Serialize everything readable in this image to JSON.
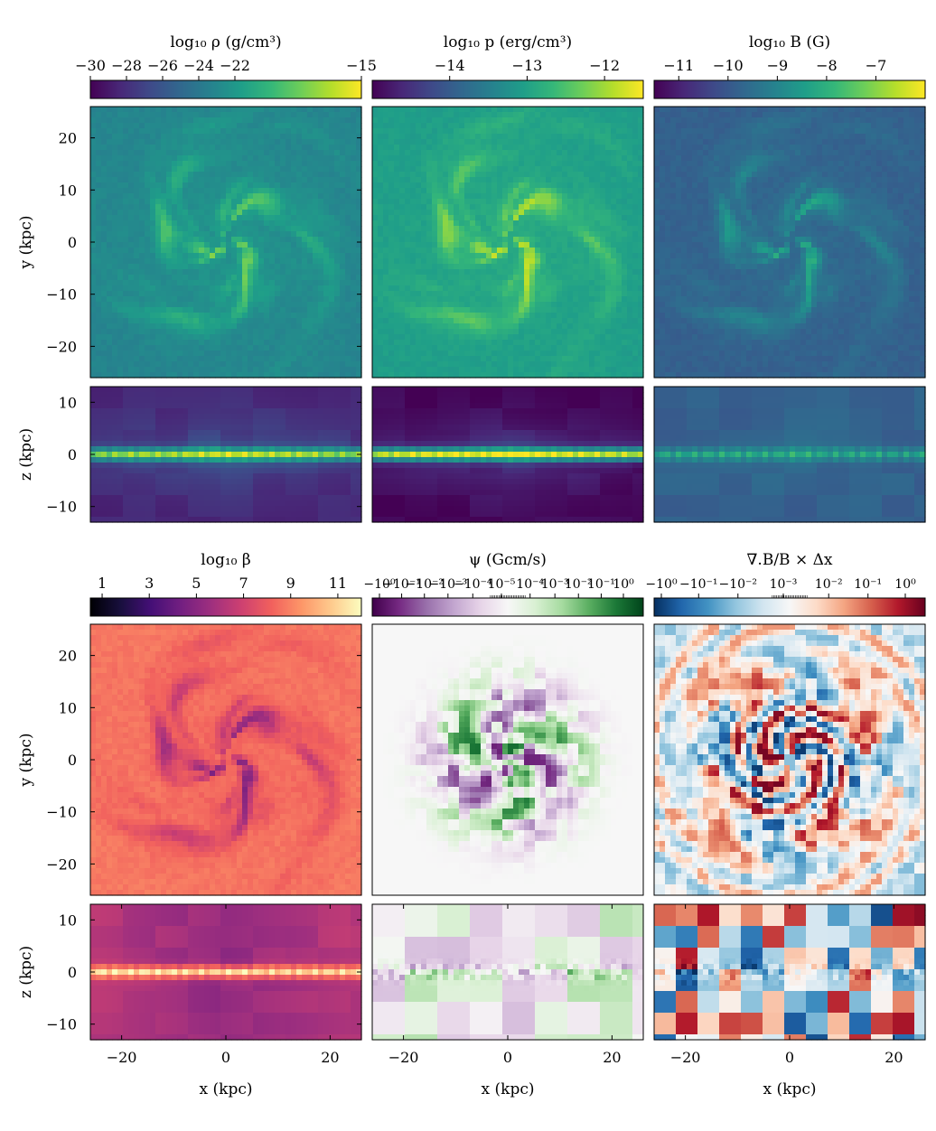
{
  "chart_data": [
    {
      "type": "heatmap",
      "name": "density-face-on",
      "colorbar_label": "log₁₀ ρ (g/cm³)",
      "colormap": "viridis",
      "clim": [
        -30,
        -15
      ],
      "colorbar_ticks": [
        "−30",
        "−28",
        "−26",
        "−24",
        "−22",
        "−15"
      ],
      "colorbar_tick_values": [
        -30,
        -28,
        -26,
        -24,
        -22,
        -15
      ],
      "xlim": [
        -26,
        26
      ],
      "ylim": [
        -26,
        26
      ],
      "ylabel": "y (kpc)",
      "yticks": [
        "20",
        "10",
        "0",
        "−10",
        "−20"
      ],
      "ytick_values": [
        20,
        10,
        0,
        -10,
        -20
      ],
      "pattern": "spiral",
      "level": [
        0.45,
        0.78,
        0.72
      ]
    },
    {
      "type": "heatmap",
      "name": "pressure-face-on",
      "colorbar_label": "log₁₀ p (erg/cm³)",
      "colormap": "viridis",
      "clim": [
        -15,
        -11.5
      ],
      "colorbar_ticks": [
        "−14",
        "−13",
        "−12"
      ],
      "colorbar_tick_values": [
        -14,
        -13,
        -12
      ],
      "xlim": [
        -26,
        26
      ],
      "ylim": [
        -26,
        26
      ],
      "pattern": "spiral",
      "level": [
        0.55,
        0.92,
        0.6
      ]
    },
    {
      "type": "heatmap",
      "name": "magnetic-field-face-on",
      "colorbar_label": "log₁₀ B (G)",
      "colormap": "viridis",
      "clim": [
        -11.5,
        -6
      ],
      "colorbar_ticks": [
        "−11",
        "−10",
        "−9",
        "−8",
        "−7"
      ],
      "colorbar_tick_values": [
        -11,
        -10,
        -9,
        -8,
        -7
      ],
      "xlim": [
        -26,
        26
      ],
      "ylim": [
        -26,
        26
      ],
      "pattern": "spiral",
      "level": [
        0.3,
        0.62,
        0.5
      ]
    },
    {
      "type": "heatmap",
      "name": "density-edge-on",
      "colormap": "viridis",
      "xlim": [
        -26,
        26
      ],
      "ylim": [
        -13,
        13
      ],
      "ylabel": "z (kpc)",
      "yticks": [
        "10",
        "0",
        "−10"
      ],
      "ytick_values": [
        10,
        0,
        -10
      ],
      "pattern": "disk",
      "level": [
        0.1,
        0.7,
        0.8
      ]
    },
    {
      "type": "heatmap",
      "name": "pressure-edge-on",
      "colormap": "viridis",
      "xlim": [
        -26,
        26
      ],
      "ylim": [
        -13,
        13
      ],
      "pattern": "disk",
      "level": [
        0.0,
        0.78,
        0.9
      ]
    },
    {
      "type": "heatmap",
      "name": "magnetic-field-edge-on",
      "colormap": "viridis",
      "xlim": [
        -26,
        26
      ],
      "ylim": [
        -13,
        13
      ],
      "pattern": "disk",
      "level": [
        0.3,
        0.55,
        0.2
      ]
    },
    {
      "type": "heatmap",
      "name": "plasma-beta-face-on",
      "colorbar_label": "log₁₀ β",
      "colormap": "magma",
      "clim": [
        0.5,
        12
      ],
      "colorbar_ticks": [
        "1",
        "3",
        "5",
        "7",
        "9",
        "11"
      ],
      "colorbar_tick_values": [
        1,
        3,
        5,
        7,
        9,
        11
      ],
      "xlim": [
        -26,
        26
      ],
      "ylim": [
        -26,
        26
      ],
      "ylabel": "y (kpc)",
      "yticks": [
        "20",
        "10",
        "0",
        "−10",
        "−20"
      ],
      "ytick_values": [
        20,
        10,
        0,
        -10,
        -20
      ],
      "pattern": "spiral",
      "level": [
        0.72,
        0.35,
        -0.4
      ]
    },
    {
      "type": "heatmap",
      "name": "psi-face-on",
      "colorbar_label": "ψ (Gcm/s)",
      "colormap": "PRGn",
      "colorbar_scale": "symlog",
      "colorbar_ticks": [
        "−10⁰",
        "−10⁻¹",
        "−10⁻²",
        "−10⁻³",
        "−10⁻⁴",
        "10⁻⁵",
        "10⁻⁴",
        "10⁻³",
        "10⁻²",
        "10⁻¹",
        "10⁰"
      ],
      "xlim": [
        -26,
        26
      ],
      "ylim": [
        -26,
        26
      ],
      "pattern": "signed-disk",
      "level": [
        0.5,
        0.3,
        0.5
      ]
    },
    {
      "type": "heatmap",
      "name": "divergence-b-face-on",
      "colorbar_label": "∇.B/B × Δx",
      "colormap": "RdBu_r",
      "colorbar_scale": "symlog",
      "colorbar_ticks": [
        "−10⁰",
        "−10⁻¹",
        "−10⁻²",
        "10⁻³",
        "10⁻²",
        "10⁻¹",
        "10⁰"
      ],
      "xlim": [
        -26,
        26
      ],
      "ylim": [
        -26,
        26
      ],
      "pattern": "signed-full",
      "level": [
        0.5,
        0.42,
        0.8
      ]
    },
    {
      "type": "heatmap",
      "name": "plasma-beta-edge-on",
      "colormap": "magma",
      "xlim": [
        -26,
        26
      ],
      "ylim": [
        -13,
        13
      ],
      "ylabel": "z (kpc)",
      "xlabel": "x (kpc)",
      "yticks": [
        "10",
        "0",
        "−10"
      ],
      "ytick_values": [
        10,
        0,
        -10
      ],
      "xticks": [
        "−20",
        "0",
        "20"
      ],
      "xtick_values": [
        -20,
        0,
        20
      ],
      "pattern": "disk",
      "level": [
        0.5,
        0.92,
        -0.2
      ]
    },
    {
      "type": "heatmap",
      "name": "psi-edge-on",
      "colormap": "PRGn",
      "xlim": [
        -26,
        26
      ],
      "ylim": [
        -13,
        13
      ],
      "xlabel": "x (kpc)",
      "xticks": [
        "−20",
        "0",
        "20"
      ],
      "xtick_values": [
        -20,
        0,
        20
      ],
      "pattern": "signed-blocks",
      "level": [
        0.5,
        0.22,
        0.5
      ]
    },
    {
      "type": "heatmap",
      "name": "divergence-b-edge-on",
      "colormap": "RdBu_r",
      "xlim": [
        -26,
        26
      ],
      "ylim": [
        -13,
        13
      ],
      "xlabel": "x (kpc)",
      "xticks": [
        "−20",
        "0",
        "20"
      ],
      "xtick_values": [
        -20,
        0,
        20
      ],
      "pattern": "signed-blocks-strong",
      "level": [
        0.5,
        0.45,
        0.5
      ]
    }
  ]
}
